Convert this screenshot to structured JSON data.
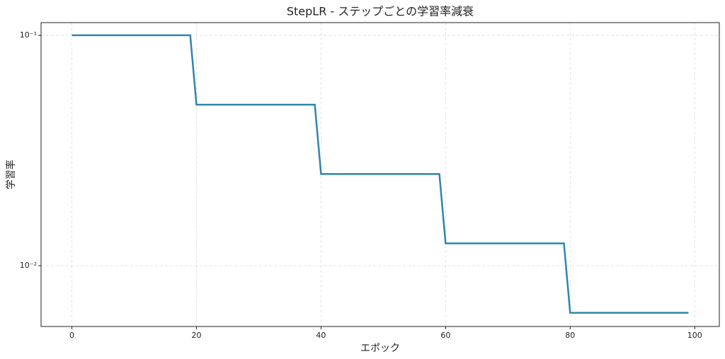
{
  "chart_data": {
    "type": "line",
    "title": "StepLR - ステップごとの学習率減衰",
    "x_label": "エポック",
    "y_label": "学習率",
    "x": [
      0,
      1,
      2,
      3,
      4,
      5,
      6,
      7,
      8,
      9,
      10,
      11,
      12,
      13,
      14,
      15,
      16,
      17,
      18,
      19,
      20,
      21,
      22,
      23,
      24,
      25,
      26,
      27,
      28,
      29,
      30,
      31,
      32,
      33,
      34,
      35,
      36,
      37,
      38,
      39,
      40,
      41,
      42,
      43,
      44,
      45,
      46,
      47,
      48,
      49,
      50,
      51,
      52,
      53,
      54,
      55,
      56,
      57,
      58,
      59,
      60,
      61,
      62,
      63,
      64,
      65,
      66,
      67,
      68,
      69,
      70,
      71,
      72,
      73,
      74,
      75,
      76,
      77,
      78,
      79,
      80,
      81,
      82,
      83,
      84,
      85,
      86,
      87,
      88,
      89,
      90,
      91,
      92,
      93,
      94,
      95,
      96,
      97,
      98,
      99
    ],
    "series": [
      {
        "color": "#2e86ab",
        "values": [
          0.1,
          0.1,
          0.1,
          0.1,
          0.1,
          0.1,
          0.1,
          0.1,
          0.1,
          0.1,
          0.1,
          0.1,
          0.1,
          0.1,
          0.1,
          0.1,
          0.1,
          0.1,
          0.1,
          0.1,
          0.05,
          0.05,
          0.05,
          0.05,
          0.05,
          0.05,
          0.05,
          0.05,
          0.05,
          0.05,
          0.05,
          0.05,
          0.05,
          0.05,
          0.05,
          0.05,
          0.05,
          0.05,
          0.05,
          0.05,
          0.025,
          0.025,
          0.025,
          0.025,
          0.025,
          0.025,
          0.025,
          0.025,
          0.025,
          0.025,
          0.025,
          0.025,
          0.025,
          0.025,
          0.025,
          0.025,
          0.025,
          0.025,
          0.025,
          0.025,
          0.0125,
          0.0125,
          0.0125,
          0.0125,
          0.0125,
          0.0125,
          0.0125,
          0.0125,
          0.0125,
          0.0125,
          0.0125,
          0.0125,
          0.0125,
          0.0125,
          0.0125,
          0.0125,
          0.0125,
          0.0125,
          0.0125,
          0.0125,
          0.00625,
          0.00625,
          0.00625,
          0.00625,
          0.00625,
          0.00625,
          0.00625,
          0.00625,
          0.00625,
          0.00625,
          0.00625,
          0.00625,
          0.00625,
          0.00625,
          0.00625,
          0.00625,
          0.00625,
          0.00625,
          0.00625,
          0.00625
        ]
      }
    ],
    "xlim": [
      -4.95,
      103.95
    ],
    "xticks": [
      0,
      20,
      40,
      60,
      80,
      100
    ],
    "ylim": [
      0.00545,
      0.1135
    ],
    "y_scale": "log",
    "yticks": [
      {
        "value": 0.1,
        "label": "10⁻¹"
      },
      {
        "value": 0.01,
        "label": "10⁻²"
      }
    ],
    "grid": true
  }
}
